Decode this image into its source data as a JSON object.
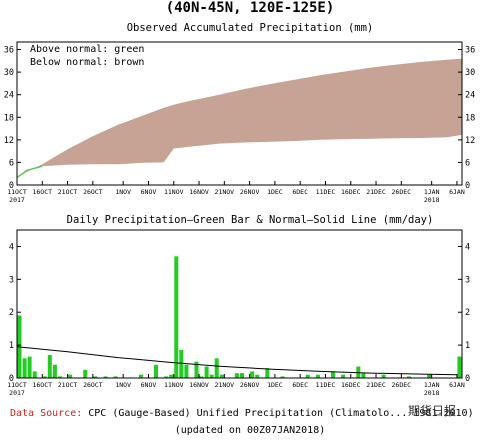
{
  "header": "(40N-45N, 120E-125E)",
  "colors": {
    "above": "#c6a395",
    "below_line": "#58c858",
    "bars": "#22cc22",
    "normal_line": "#000000",
    "source_red": "#d02020"
  },
  "legend": {
    "above": "Above normal: green",
    "below": "Below normal: brown"
  },
  "footer": {
    "source_label": "Data Source:",
    "source_text": " CPC (Gauge-Based) Unified Precipitation (Climatolo... 1981-2010)",
    "updated": "(updated on 00Z07JAN2018)",
    "watermark": "期货日报"
  },
  "x_axis": {
    "ticks": [
      "11OCT",
      "16OCT",
      "21OCT",
      "26OCT",
      "1NOV",
      "6NOV",
      "11NOV",
      "16NOV",
      "21NOV",
      "26NOV",
      "1DEC",
      "6DEC",
      "11DEC",
      "16DEC",
      "21DEC",
      "26DEC",
      "1JAN",
      "6JAN"
    ],
    "tick_days": [
      0,
      5,
      10,
      15,
      21,
      26,
      31,
      36,
      41,
      46,
      51,
      56,
      61,
      66,
      71,
      76,
      82,
      87
    ],
    "year_labels": [
      {
        "text": "2017",
        "day": 0
      },
      {
        "text": "2018",
        "day": 82
      }
    ]
  },
  "chart_data": [
    {
      "type": "area",
      "title": "Observed Accumulated Precipitation (mm)",
      "ylim": [
        0,
        38
      ],
      "yticks": [
        0,
        6,
        12,
        18,
        24,
        30,
        36
      ],
      "x_days": [
        0,
        2,
        5,
        10,
        15,
        20,
        25,
        29,
        31,
        33,
        35,
        40,
        45,
        50,
        55,
        60,
        65,
        70,
        75,
        80,
        85,
        88
      ],
      "series": [
        {
          "values": [
            2.0,
            3.5,
            5.5,
            9.5,
            13.0,
            16.0,
            18.5,
            20.5,
            21.3,
            22.0,
            22.6,
            24.0,
            25.5,
            26.8,
            28.0,
            29.2,
            30.2,
            31.2,
            32.0,
            32.7,
            33.3,
            33.6
          ]
        },
        {
          "values": [
            2.0,
            3.9,
            5.0,
            5.4,
            5.5,
            5.5,
            5.9,
            6.0,
            9.7,
            10.0,
            10.3,
            11.0,
            11.3,
            11.5,
            11.7,
            12.0,
            12.2,
            12.3,
            12.4,
            12.5,
            12.7,
            13.3
          ]
        }
      ]
    },
    {
      "type": "bar",
      "title": "Daily Precipitation—Green Bar & Normal—Solid Line (mm/day)",
      "ylim": [
        0,
        4.5
      ],
      "yticks": [
        0,
        1,
        2,
        3,
        4
      ],
      "bars": [
        {
          "day": 0,
          "value": 1.9
        },
        {
          "day": 1,
          "value": 0.6
        },
        {
          "day": 2,
          "value": 0.65
        },
        {
          "day": 3,
          "value": 0.2
        },
        {
          "day": 5,
          "value": 0.05
        },
        {
          "day": 6,
          "value": 0.7
        },
        {
          "day": 7,
          "value": 0.4
        },
        {
          "day": 8,
          "value": 0.05
        },
        {
          "day": 10,
          "value": 0.1
        },
        {
          "day": 13,
          "value": 0.25
        },
        {
          "day": 15,
          "value": 0.05
        },
        {
          "day": 17,
          "value": 0.05
        },
        {
          "day": 19,
          "value": 0.05
        },
        {
          "day": 24,
          "value": 0.1
        },
        {
          "day": 27,
          "value": 0.4
        },
        {
          "day": 29,
          "value": 0.05
        },
        {
          "day": 30,
          "value": 0.1
        },
        {
          "day": 31,
          "value": 3.7
        },
        {
          "day": 32,
          "value": 0.85
        },
        {
          "day": 33,
          "value": 0.4
        },
        {
          "day": 35,
          "value": 0.5
        },
        {
          "day": 36,
          "value": 0.05
        },
        {
          "day": 37,
          "value": 0.35
        },
        {
          "day": 38,
          "value": 0.1
        },
        {
          "day": 39,
          "value": 0.6
        },
        {
          "day": 40,
          "value": 0.1
        },
        {
          "day": 43,
          "value": 0.15
        },
        {
          "day": 44,
          "value": 0.15
        },
        {
          "day": 46,
          "value": 0.2
        },
        {
          "day": 47,
          "value": 0.1
        },
        {
          "day": 49,
          "value": 0.3
        },
        {
          "day": 52,
          "value": 0.05
        },
        {
          "day": 57,
          "value": 0.1
        },
        {
          "day": 59,
          "value": 0.1
        },
        {
          "day": 62,
          "value": 0.2
        },
        {
          "day": 64,
          "value": 0.1
        },
        {
          "day": 67,
          "value": 0.35
        },
        {
          "day": 68,
          "value": 0.15
        },
        {
          "day": 72,
          "value": 0.1
        },
        {
          "day": 77,
          "value": 0.05
        },
        {
          "day": 81,
          "value": 0.1
        },
        {
          "day": 87,
          "value": 0.65
        }
      ],
      "normal_line": {
        "x_days": [
          0,
          10,
          20,
          30,
          40,
          50,
          60,
          70,
          80,
          87
        ],
        "values": [
          0.95,
          0.8,
          0.62,
          0.48,
          0.36,
          0.27,
          0.2,
          0.15,
          0.12,
          0.1
        ]
      }
    }
  ]
}
